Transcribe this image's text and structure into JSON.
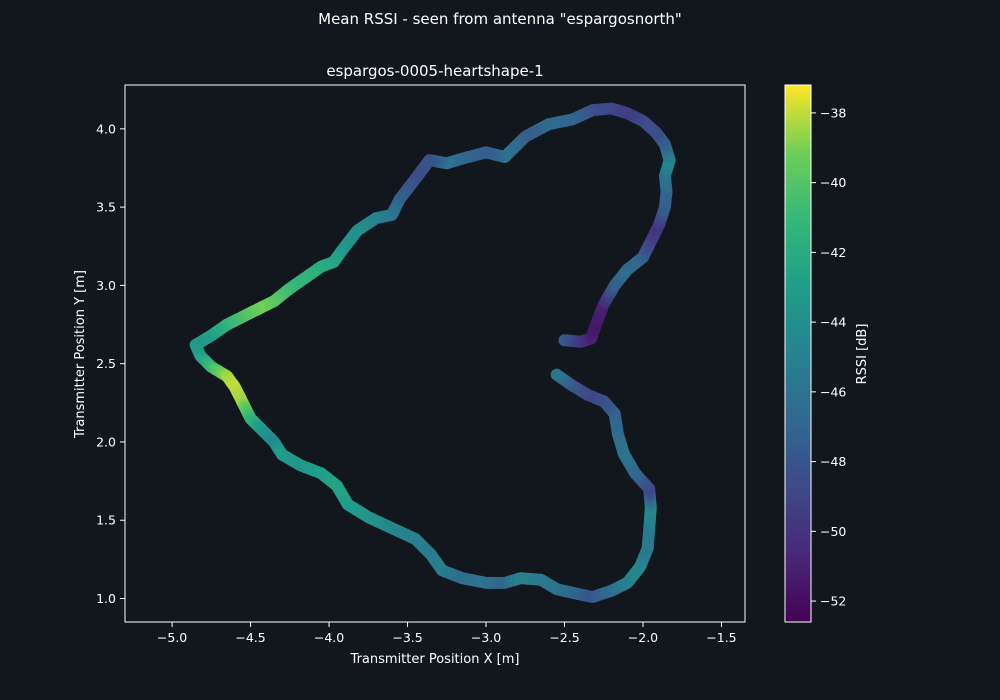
{
  "figure": {
    "suptitle": "Mean RSSI - seen from antenna \"espargosnorth\""
  },
  "chart_data": {
    "type": "scatter",
    "title": "espargos-0005-heartshape-1",
    "xlabel": "Transmitter Position X [m]",
    "ylabel": "Transmitter Position Y [m]",
    "xlim": [
      -5.3,
      -1.35
    ],
    "ylim": [
      0.85,
      4.28
    ],
    "xticks": [
      -5.0,
      -4.5,
      -4.0,
      -3.5,
      -3.0,
      -2.5,
      -2.0,
      -1.5
    ],
    "xtick_labels": [
      "−5.0",
      "−4.5",
      "−4.0",
      "−3.5",
      "−3.0",
      "−2.5",
      "−2.0",
      "−1.5"
    ],
    "yticks": [
      1.0,
      1.5,
      2.0,
      2.5,
      3.0,
      3.5,
      4.0
    ],
    "ytick_labels": [
      "1.0",
      "1.5",
      "2.0",
      "2.5",
      "3.0",
      "3.5",
      "4.0"
    ],
    "grid": false,
    "colormap": "viridis",
    "colorbar": {
      "label": "RSSI [dB]",
      "range": [
        -52.6,
        -37.2
      ],
      "ticks": [
        -38,
        -40,
        -42,
        -44,
        -46,
        -48,
        -50,
        -52
      ],
      "tick_labels": [
        "−38",
        "−40",
        "−42",
        "−44",
        "−46",
        "−48",
        "−50",
        "−52"
      ]
    },
    "points": [
      [
        -2.5,
        2.65,
        -47.5
      ],
      [
        -2.4,
        2.64,
        -49.5
      ],
      [
        -2.33,
        2.66,
        -51.0
      ],
      [
        -2.3,
        2.75,
        -51.5
      ],
      [
        -2.25,
        2.88,
        -51.0
      ],
      [
        -2.18,
        3.0,
        -47.5
      ],
      [
        -2.1,
        3.1,
        -46.5
      ],
      [
        -2.0,
        3.18,
        -47.0
      ],
      [
        -1.95,
        3.28,
        -49.0
      ],
      [
        -1.9,
        3.38,
        -50.0
      ],
      [
        -1.86,
        3.5,
        -47.5
      ],
      [
        -1.85,
        3.6,
        -47.0
      ],
      [
        -1.86,
        3.7,
        -46.0
      ],
      [
        -1.83,
        3.8,
        -44.5
      ],
      [
        -1.86,
        3.9,
        -47.0
      ],
      [
        -1.92,
        3.98,
        -48.5
      ],
      [
        -2.0,
        4.05,
        -48.5
      ],
      [
        -2.1,
        4.1,
        -49.5
      ],
      [
        -2.2,
        4.13,
        -49.0
      ],
      [
        -2.32,
        4.12,
        -48.5
      ],
      [
        -2.45,
        4.06,
        -47.0
      ],
      [
        -2.6,
        4.03,
        -46.5
      ],
      [
        -2.75,
        3.95,
        -47.5
      ],
      [
        -2.88,
        3.82,
        -46.0
      ],
      [
        -3.0,
        3.85,
        -47.5
      ],
      [
        -3.15,
        3.81,
        -47.0
      ],
      [
        -3.25,
        3.78,
        -46.0
      ],
      [
        -3.36,
        3.8,
        -48.0
      ],
      [
        -3.45,
        3.68,
        -48.5
      ],
      [
        -3.55,
        3.55,
        -47.5
      ],
      [
        -3.6,
        3.45,
        -46.0
      ],
      [
        -3.7,
        3.43,
        -45.0
      ],
      [
        -3.82,
        3.35,
        -44.0
      ],
      [
        -3.92,
        3.22,
        -43.5
      ],
      [
        -3.97,
        3.15,
        -42.5
      ],
      [
        -4.05,
        3.12,
        -42.0
      ],
      [
        -4.15,
        3.05,
        -41.5
      ],
      [
        -4.25,
        2.98,
        -41.0
      ],
      [
        -4.35,
        2.9,
        -40.0
      ],
      [
        -4.45,
        2.85,
        -39.0
      ],
      [
        -4.55,
        2.8,
        -40.0
      ],
      [
        -4.65,
        2.75,
        -41.0
      ],
      [
        -4.75,
        2.68,
        -42.5
      ],
      [
        -4.85,
        2.62,
        -43.5
      ],
      [
        -4.82,
        2.55,
        -43.0
      ],
      [
        -4.75,
        2.48,
        -41.0
      ],
      [
        -4.65,
        2.42,
        -38.5
      ],
      [
        -4.6,
        2.35,
        -38.0
      ],
      [
        -4.55,
        2.25,
        -38.5
      ],
      [
        -4.5,
        2.15,
        -41.0
      ],
      [
        -4.42,
        2.07,
        -43.5
      ],
      [
        -4.35,
        2.0,
        -44.5
      ],
      [
        -4.3,
        1.92,
        -43.0
      ],
      [
        -4.18,
        1.85,
        -43.5
      ],
      [
        -4.05,
        1.8,
        -43.0
      ],
      [
        -3.95,
        1.72,
        -42.5
      ],
      [
        -3.88,
        1.6,
        -43.0
      ],
      [
        -3.75,
        1.52,
        -43.5
      ],
      [
        -3.6,
        1.45,
        -44.5
      ],
      [
        -3.45,
        1.38,
        -45.0
      ],
      [
        -3.35,
        1.28,
        -45.5
      ],
      [
        -3.28,
        1.18,
        -45.0
      ],
      [
        -3.15,
        1.13,
        -46.5
      ],
      [
        -3.0,
        1.1,
        -46.0
      ],
      [
        -2.88,
        1.1,
        -47.0
      ],
      [
        -2.78,
        1.13,
        -45.0
      ],
      [
        -2.65,
        1.12,
        -45.5
      ],
      [
        -2.55,
        1.06,
        -46.0
      ],
      [
        -2.42,
        1.03,
        -47.0
      ],
      [
        -2.32,
        1.01,
        -48.0
      ],
      [
        -2.2,
        1.05,
        -46.5
      ],
      [
        -2.1,
        1.1,
        -45.0
      ],
      [
        -2.02,
        1.2,
        -44.5
      ],
      [
        -1.97,
        1.32,
        -45.5
      ],
      [
        -1.96,
        1.45,
        -45.5
      ],
      [
        -1.95,
        1.58,
        -44.5
      ],
      [
        -1.96,
        1.7,
        -49.0
      ],
      [
        -2.05,
        1.8,
        -47.0
      ],
      [
        -2.12,
        1.92,
        -46.0
      ],
      [
        -2.16,
        2.05,
        -46.5
      ],
      [
        -2.18,
        2.18,
        -47.0
      ],
      [
        -2.25,
        2.26,
        -48.0
      ],
      [
        -2.35,
        2.3,
        -49.0
      ],
      [
        -2.45,
        2.36,
        -48.0
      ],
      [
        -2.55,
        2.43,
        -46.0
      ]
    ]
  }
}
